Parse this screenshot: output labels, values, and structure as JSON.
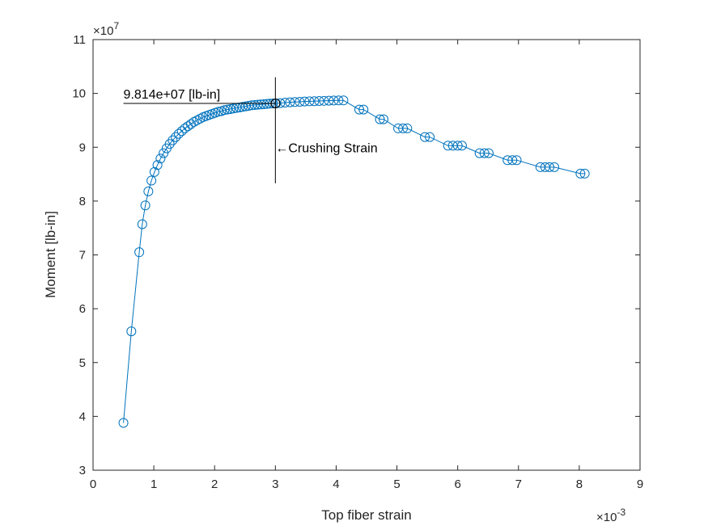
{
  "chart_data": {
    "type": "line",
    "xlabel": "Top fiber strain",
    "ylabel": "Moment [lb-in]",
    "x_multiplier": "×10",
    "x_exponent": "-3",
    "y_multiplier": "×10",
    "y_exponent": "7",
    "xlim": [
      0,
      9
    ],
    "ylim": [
      3,
      11
    ],
    "x_ticks": [
      "0",
      "1",
      "2",
      "3",
      "4",
      "5",
      "6",
      "7",
      "8",
      "9"
    ],
    "y_ticks": [
      "3",
      "4",
      "5",
      "6",
      "7",
      "8",
      "9",
      "10",
      "11"
    ],
    "grid": false,
    "series_color": "#0072BD",
    "marker": "circle",
    "series": [
      {
        "x": [
          0.5,
          0.63,
          0.76,
          0.81,
          0.86,
          0.91,
          0.96,
          1.01,
          1.06,
          1.11,
          1.16,
          1.21,
          1.26,
          1.31,
          1.36,
          1.41,
          1.46,
          1.51,
          1.56,
          1.61,
          1.66,
          1.71,
          1.76,
          1.81,
          1.86,
          1.91,
          1.96,
          2.01,
          2.06,
          2.11,
          2.16,
          2.21,
          2.26,
          2.31,
          2.36,
          2.41,
          2.46,
          2.51,
          2.56,
          2.61,
          2.66,
          2.71,
          2.76,
          2.81,
          2.86,
          2.91,
          2.96,
          3.01,
          3.08,
          3.16,
          3.24,
          3.32,
          3.4,
          3.48,
          3.56,
          3.64,
          3.72,
          3.8,
          3.88,
          3.96,
          4.04,
          4.12,
          4.38,
          4.45,
          4.72,
          4.78,
          5.02,
          5.1,
          5.17,
          5.46,
          5.54,
          5.84,
          5.92,
          6.0,
          6.07,
          6.36,
          6.44,
          6.51,
          6.82,
          6.9,
          6.97,
          7.36,
          7.44,
          7.51,
          7.59,
          8.02,
          8.09
        ],
        "y": [
          3.88,
          5.58,
          7.05,
          7.57,
          7.92,
          8.18,
          8.38,
          8.54,
          8.67,
          8.79,
          8.89,
          8.98,
          9.06,
          9.13,
          9.19,
          9.25,
          9.3,
          9.35,
          9.39,
          9.43,
          9.47,
          9.5,
          9.53,
          9.56,
          9.58,
          9.6,
          9.62,
          9.64,
          9.66,
          9.67,
          9.69,
          9.7,
          9.71,
          9.72,
          9.73,
          9.74,
          9.75,
          9.76,
          9.77,
          9.78,
          9.785,
          9.79,
          9.795,
          9.8,
          9.805,
          9.81,
          9.812,
          9.814,
          9.82,
          9.83,
          9.835,
          9.84,
          9.845,
          9.85,
          9.853,
          9.856,
          9.86,
          9.862,
          9.865,
          9.868,
          9.87,
          9.87,
          9.7,
          9.7,
          9.52,
          9.52,
          9.35,
          9.35,
          9.35,
          9.19,
          9.19,
          9.03,
          9.03,
          9.03,
          9.03,
          8.89,
          8.89,
          8.89,
          8.76,
          8.76,
          8.76,
          8.63,
          8.63,
          8.63,
          8.63,
          8.51,
          8.51
        ]
      }
    ],
    "annotations": [
      {
        "id": "peak",
        "text": "9.814e+07 [lb-in]",
        "x": 3.0,
        "y": 9.814,
        "line_from_x": 0.5
      },
      {
        "id": "crushing",
        "text": "←Crushing Strain",
        "x": 3.0,
        "y": 9.0,
        "vline_from_y": 8.33,
        "vline_to_y": 10.3
      }
    ]
  }
}
